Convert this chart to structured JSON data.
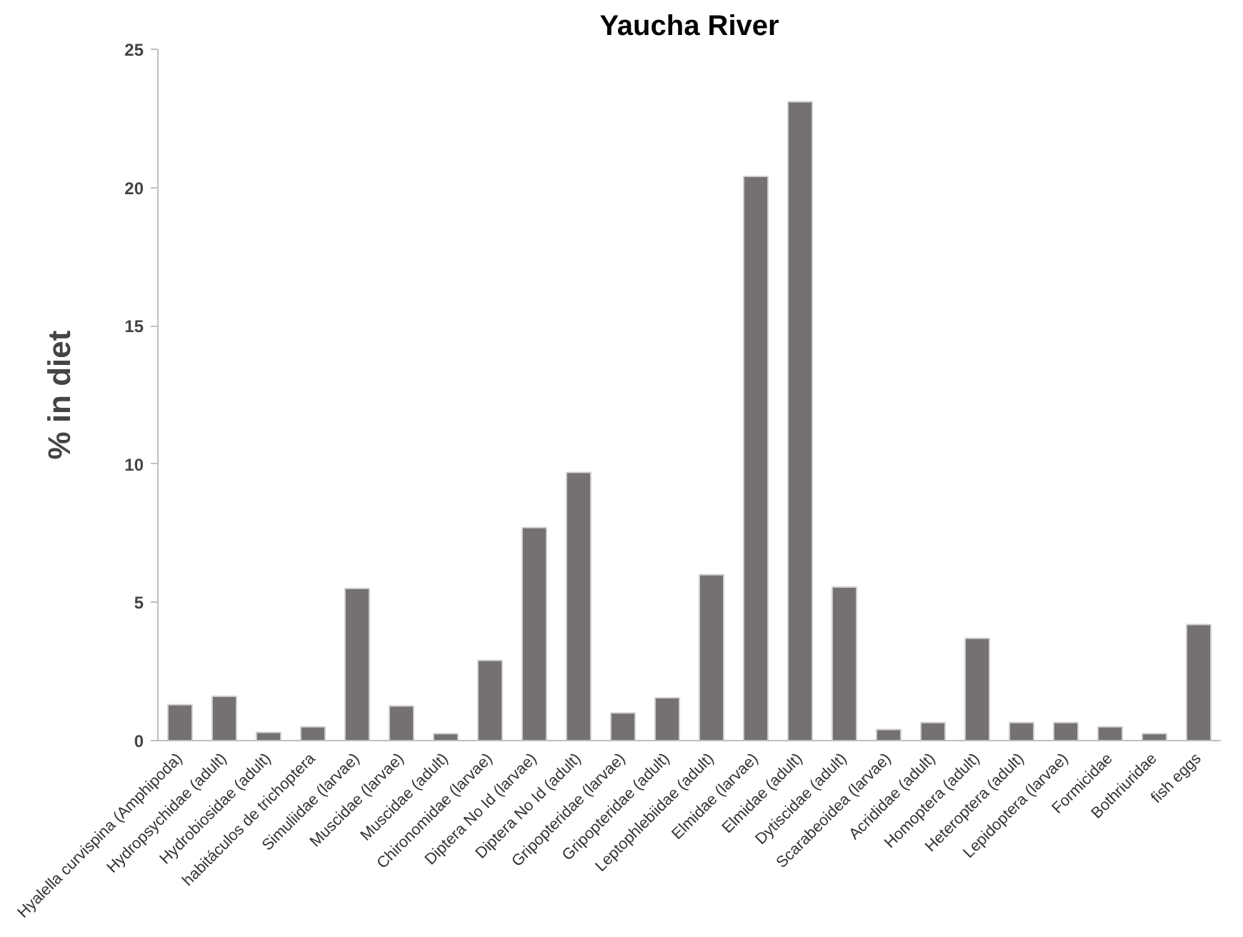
{
  "chart_data": {
    "type": "bar",
    "title": "Yaucha River",
    "ylabel": "% in diet",
    "categories": [
      "Hyalella curvispina (Amphipoda)",
      "Hydropsychidae (adult)",
      "Hydrobiosidae (adult)",
      "habitáculos de trichoptera",
      "Simuliidae (larvae)",
      "Muscidae (larvae)",
      "Muscidae (adult)",
      "Chironomidae (larvae)",
      "Diptera No Id (larvae)",
      "Diptera No Id (adult)",
      "Gripopteridae (larvae)",
      "Gripopteridae (adult)",
      "Leptophlebiidae (adult)",
      "Elmidae (larvae)",
      "Elmidae (adult)",
      "Dytiscidae (adult)",
      "Scarabeoidea (larvae)",
      "Acrididae (adult)",
      "Homoptera (adult)",
      "Heteroptera (adult)",
      "Lepidoptera (larvae)",
      "Formicidae",
      "Bothriuridae",
      "fish eggs"
    ],
    "values": [
      1.3,
      1.6,
      0.3,
      0.5,
      5.5,
      1.25,
      0.25,
      2.9,
      7.7,
      9.7,
      1.0,
      1.55,
      6.0,
      20.4,
      23.1,
      5.55,
      0.4,
      0.65,
      3.7,
      0.65,
      0.65,
      0.5,
      0.25,
      4.2
    ],
    "color": "#767171",
    "ylim": [
      0,
      25
    ],
    "yticks": [
      0,
      5,
      10,
      15,
      20,
      25
    ],
    "grid": false
  }
}
